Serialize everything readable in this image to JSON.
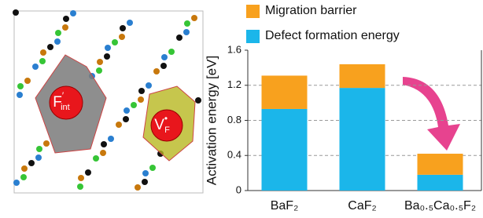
{
  "chart_data": {
    "type": "stacked_bar",
    "ylabel": "Activation energy [eV]",
    "categories": [
      "BaF₂",
      "CaF₂",
      "Ba₀.₅Ca₀.₅F₂"
    ],
    "series": [
      {
        "name": "Defect formation energy",
        "color": "#1bb6ea",
        "values": [
          0.93,
          1.17,
          0.18
        ]
      },
      {
        "name": "Migration barrier",
        "color": "#f8a11e",
        "values": [
          0.38,
          0.27,
          0.24
        ]
      }
    ],
    "ylim": [
      0,
      1.6
    ],
    "yticks": [
      0,
      0.4,
      0.8,
      1.2,
      1.6
    ],
    "grid": true
  },
  "illustration": {
    "labels": [
      {
        "base": "F",
        "sup": "′",
        "sub": "int"
      },
      {
        "base": "V",
        "sup": "•",
        "sub": "F"
      }
    ]
  }
}
